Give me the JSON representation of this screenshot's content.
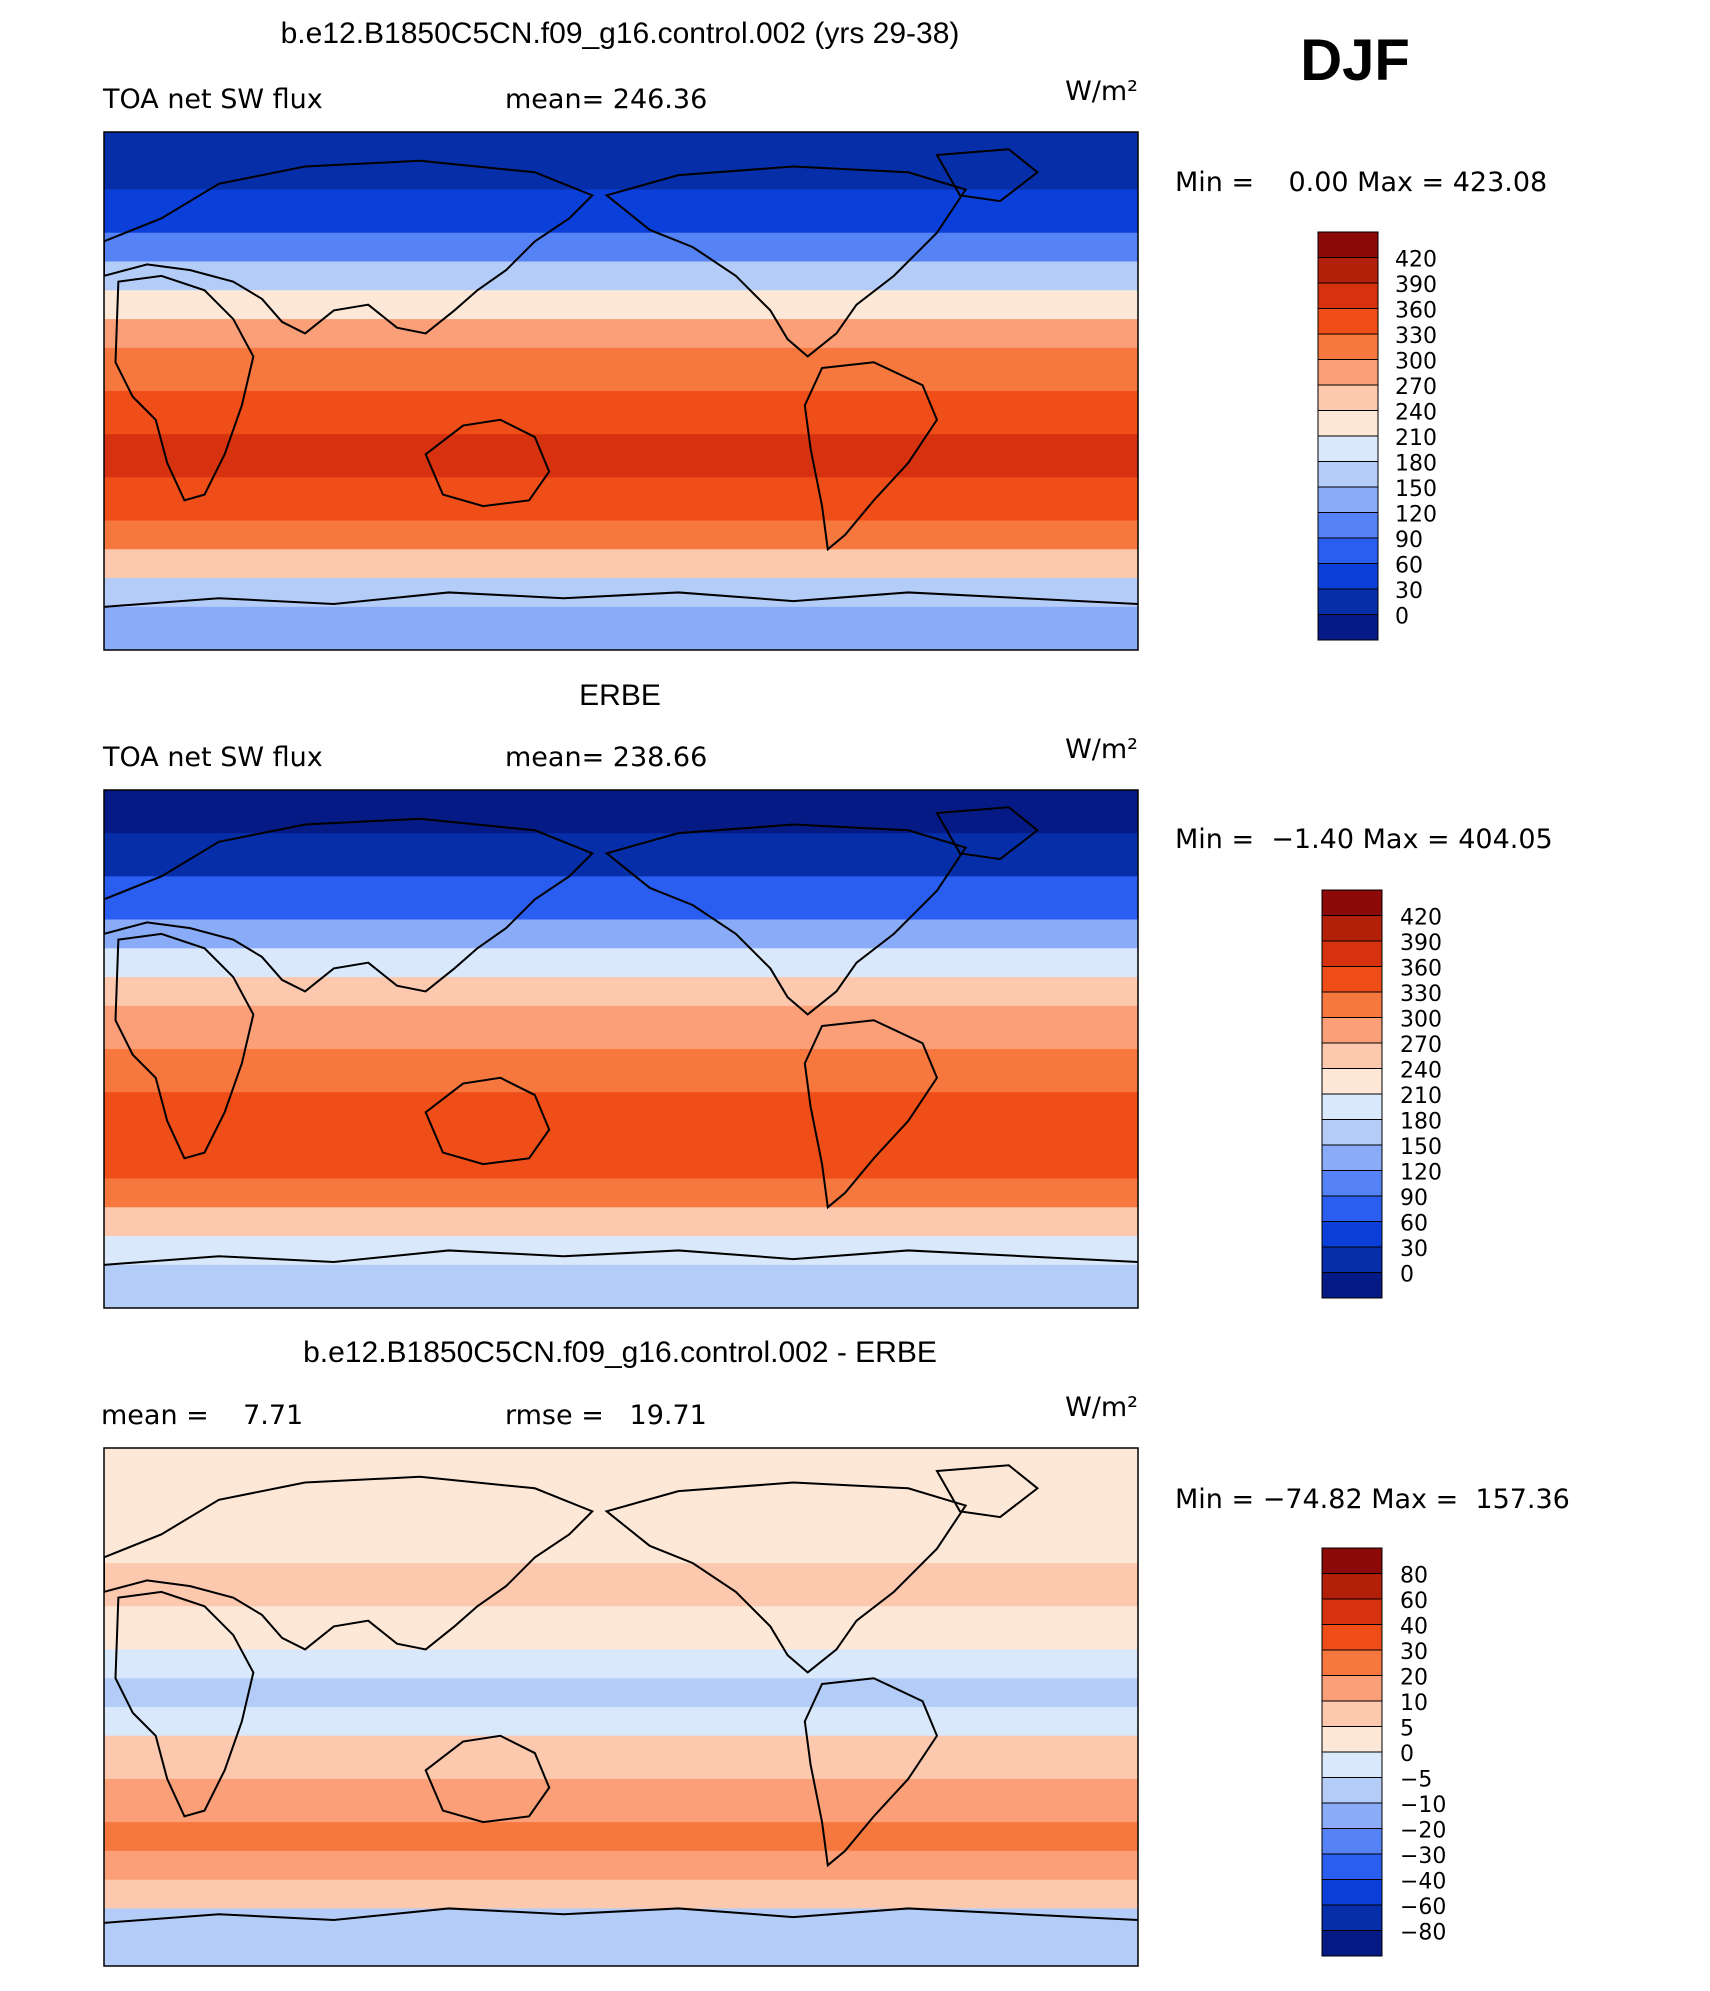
{
  "season": "DJF",
  "chart_data": [
    {
      "type": "heatmap",
      "title": "b.e12.B1850C5CN.f09_g16.control.002 (yrs 29-38)",
      "left_label": "TOA net SW flux",
      "stat_label": "mean= 246.36",
      "units": "W/m²",
      "min_max": "Min =    0.00 Max = 423.08",
      "mean": 246.36,
      "min": 0.0,
      "max": 423.08,
      "levels": [
        "420",
        "390",
        "360",
        "330",
        "300",
        "270",
        "240",
        "210",
        "180",
        "150",
        "120",
        "90",
        "60",
        "30",
        "0"
      ],
      "colors": [
        "#8c0a0a",
        "#b3200a",
        "#d7320f",
        "#f04e18",
        "#f7783f",
        "#fa9f78",
        "#fcc8ae",
        "#fde8d8",
        "#d9e8fb",
        "#b4cdf8",
        "#8aabf7",
        "#5582f4",
        "#2a5ef0",
        "#0b3fd9",
        "#062ea8",
        "#061a85"
      ],
      "map_bands": [
        {
          "lat": 90,
          "level": 30
        },
        {
          "lat": 70,
          "level": 60
        },
        {
          "lat": 55,
          "level": 120
        },
        {
          "lat": 45,
          "level": 180
        },
        {
          "lat": 35,
          "level": 240
        },
        {
          "lat": 25,
          "level": 300
        },
        {
          "lat": 15,
          "level": 330
        },
        {
          "lat": 0,
          "level": 360
        },
        {
          "lat": -15,
          "level": 390
        },
        {
          "lat": -30,
          "level": 360
        },
        {
          "lat": -45,
          "level": 330
        },
        {
          "lat": -55,
          "level": 270
        },
        {
          "lat": -65,
          "level": 180
        },
        {
          "lat": -75,
          "level": 150
        },
        {
          "lat": -90,
          "level": 120
        }
      ]
    },
    {
      "type": "heatmap",
      "title": "ERBE",
      "left_label": "TOA net SW flux",
      "stat_label": "mean= 238.66",
      "units": "W/m²",
      "min_max": "Min =  −1.40 Max = 404.05",
      "mean": 238.66,
      "min": -1.4,
      "max": 404.05,
      "levels": [
        "420",
        "390",
        "360",
        "330",
        "300",
        "270",
        "240",
        "210",
        "180",
        "150",
        "120",
        "90",
        "60",
        "30",
        "0"
      ],
      "colors": [
        "#8c0a0a",
        "#b3200a",
        "#d7320f",
        "#f04e18",
        "#f7783f",
        "#fa9f78",
        "#fcc8ae",
        "#fde8d8",
        "#d9e8fb",
        "#b4cdf8",
        "#8aabf7",
        "#5582f4",
        "#2a5ef0",
        "#0b3fd9",
        "#062ea8",
        "#061a85"
      ],
      "map_bands": [
        {
          "lat": 90,
          "level": 0
        },
        {
          "lat": 75,
          "level": 30
        },
        {
          "lat": 60,
          "level": 90
        },
        {
          "lat": 45,
          "level": 150
        },
        {
          "lat": 35,
          "level": 210
        },
        {
          "lat": 25,
          "level": 270
        },
        {
          "lat": 15,
          "level": 300
        },
        {
          "lat": 0,
          "level": 330
        },
        {
          "lat": -15,
          "level": 360
        },
        {
          "lat": -30,
          "level": 360
        },
        {
          "lat": -45,
          "level": 330
        },
        {
          "lat": -55,
          "level": 270
        },
        {
          "lat": -65,
          "level": 210
        },
        {
          "lat": -75,
          "level": 180
        },
        {
          "lat": -90,
          "level": 120
        }
      ]
    },
    {
      "type": "heatmap",
      "title": "b.e12.B1850C5CN.f09_g16.control.002 - ERBE",
      "left_label": "mean =    7.71",
      "stat_label": "rmse =   19.71",
      "units": "W/m²",
      "min_max": "Min = −74.82 Max =  157.36",
      "mean": 7.71,
      "rmse": 19.71,
      "min": -74.82,
      "max": 157.36,
      "levels": [
        "80",
        "60",
        "40",
        "30",
        "20",
        "10",
        "5",
        "0",
        "−5",
        "−10",
        "−20",
        "−30",
        "−40",
        "−60",
        "−80"
      ],
      "colors": [
        "#8c0a0a",
        "#b3200a",
        "#d7320f",
        "#f04e18",
        "#f7783f",
        "#fa9f78",
        "#fcc8ae",
        "#fde8d8",
        "#d9e8fb",
        "#b4cdf8",
        "#8aabf7",
        "#5582f4",
        "#2a5ef0",
        "#0b3fd9",
        "#062ea8",
        "#061a85"
      ],
      "map_bands": [
        {
          "lat": 90,
          "level": "5"
        },
        {
          "lat": 70,
          "level": "5"
        },
        {
          "lat": 50,
          "level": "10"
        },
        {
          "lat": 35,
          "level": "5"
        },
        {
          "lat": 20,
          "level": "0"
        },
        {
          "lat": 10,
          "level": "−5"
        },
        {
          "lat": 0,
          "level": "0"
        },
        {
          "lat": -10,
          "level": "10"
        },
        {
          "lat": -25,
          "level": "20"
        },
        {
          "lat": -40,
          "level": "30"
        },
        {
          "lat": -50,
          "level": "20"
        },
        {
          "lat": -60,
          "level": "10"
        },
        {
          "lat": -70,
          "level": "−5"
        },
        {
          "lat": -90,
          "level": "−10"
        }
      ]
    }
  ]
}
